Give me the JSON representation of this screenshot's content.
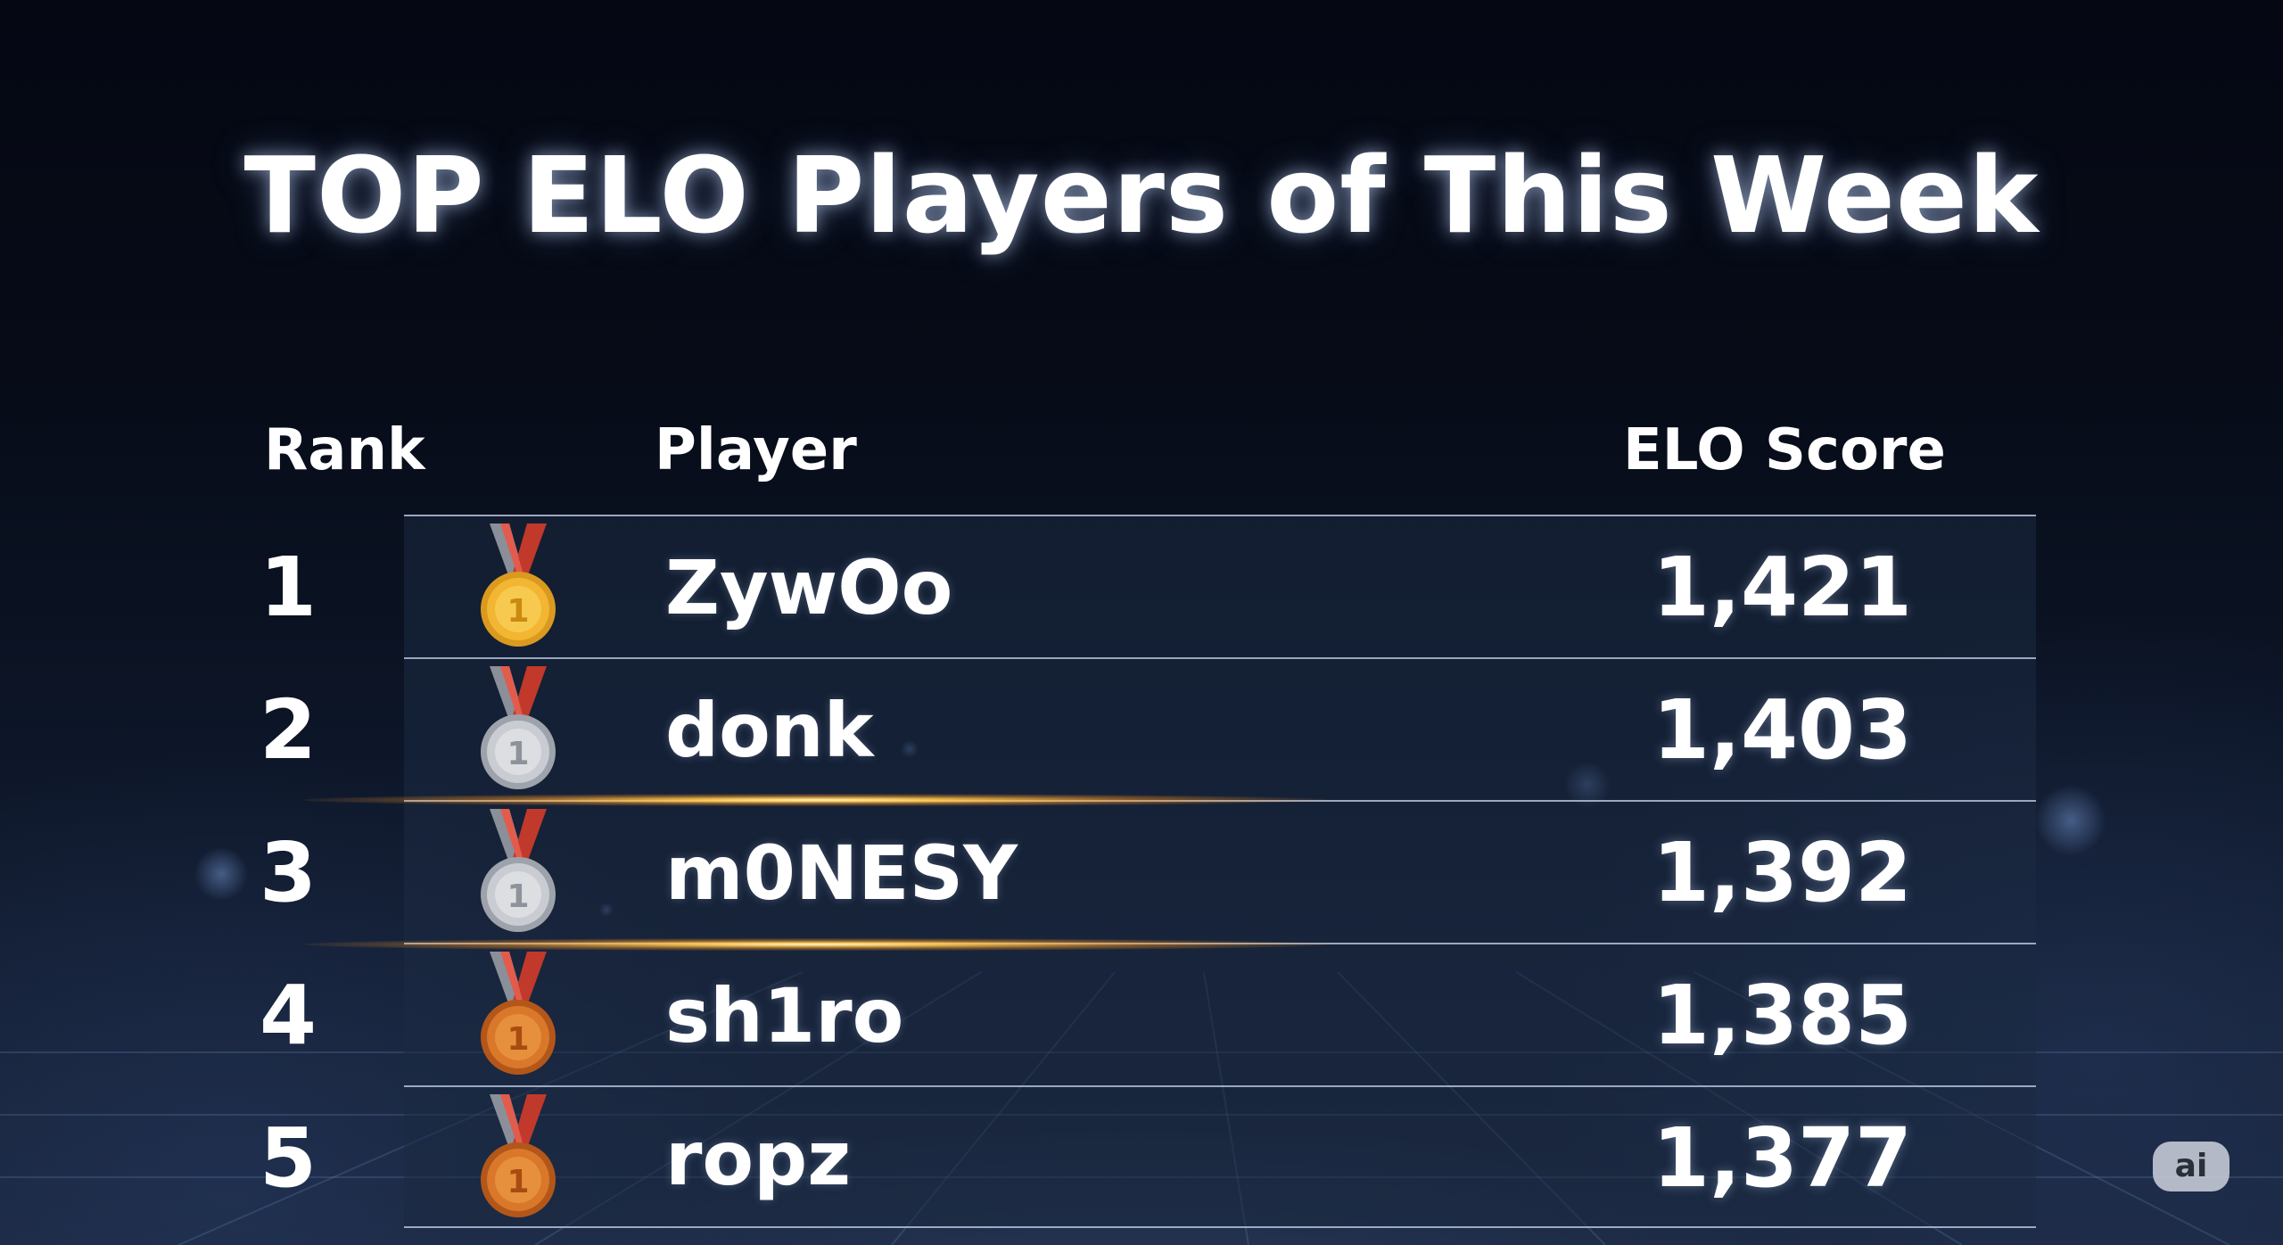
{
  "title": "TOP ELO Players of This Week",
  "headers": {
    "rank": "Rank",
    "player": "Player",
    "elo": "ELO Score"
  },
  "rows": [
    {
      "rank": "1",
      "player": "ZywOo",
      "elo": "1,421",
      "medal": "gold-medal-icon"
    },
    {
      "rank": "2",
      "player": "donk",
      "elo": "1,403",
      "medal": "silver-medal-icon"
    },
    {
      "rank": "3",
      "player": "m0NESY",
      "elo": "1,392",
      "medal": "silver-medal-icon"
    },
    {
      "rank": "4",
      "player": "sh1ro",
      "elo": "1,385",
      "medal": "bronze-medal-icon"
    },
    {
      "rank": "5",
      "player": "ropz",
      "elo": "1,377",
      "medal": "bronze-medal-icon"
    }
  ],
  "medal_colors": {
    "gold": "#f2b632",
    "silver": "#c9ccd2",
    "bronze": "#d9782a",
    "ribbon_red": "#c0392b",
    "ribbon_grey": "#8a8f99"
  },
  "badge": {
    "label": "ai"
  }
}
